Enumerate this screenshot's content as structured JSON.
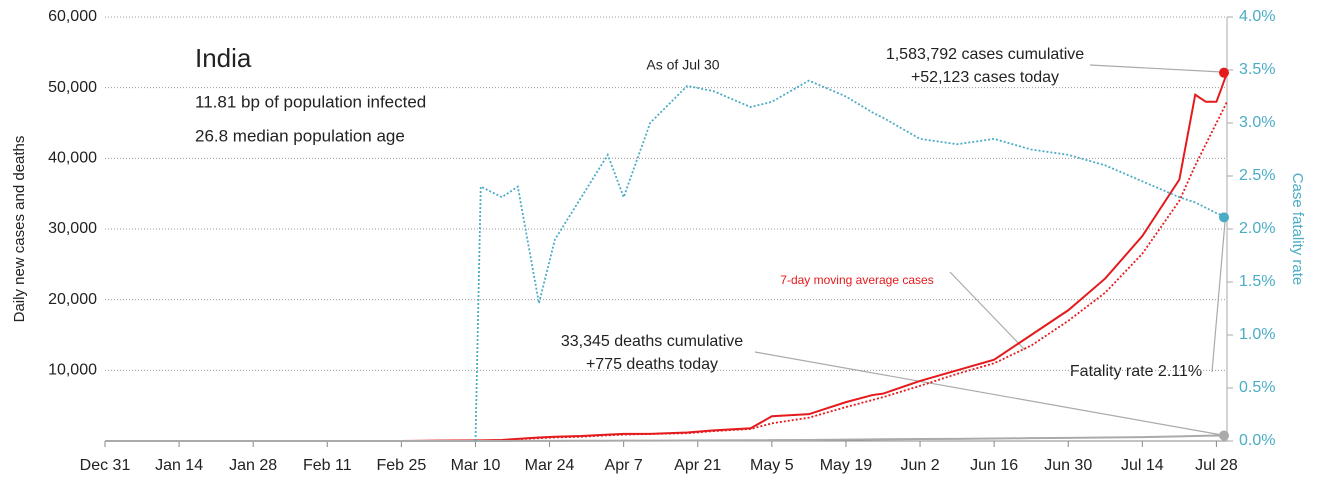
{
  "chart_data": {
    "type": "line",
    "title": "India",
    "subtitle": [
      "11.81 bp of population infected",
      "26.8 median population age"
    ],
    "annotations": {
      "as_of": "As of Jul 30",
      "cases_cum": "1,583,792 cases cumulative",
      "cases_today": "+52,123 cases today",
      "avg_label": "7-day moving average cases",
      "deaths_cum": "33,345 deaths cumulative",
      "deaths_today": "+775 deaths today",
      "fatality": "Fatality rate 2.11%"
    },
    "ylabel": "Daily new cases and deaths",
    "y2label": "Case fatality rate",
    "x": [
      0,
      14,
      28,
      42,
      56,
      63,
      70,
      71,
      75,
      78,
      82,
      85,
      90,
      95,
      98,
      103,
      110,
      115,
      122,
      126,
      133,
      140,
      145,
      147,
      154,
      161,
      168,
      175,
      182,
      189,
      196,
      203,
      206,
      208,
      210,
      211,
      212
    ],
    "xlim": [
      0,
      212
    ],
    "xticks": [
      {
        "value": 0,
        "label": "Dec 31"
      },
      {
        "value": 14,
        "label": "Jan 14"
      },
      {
        "value": 28,
        "label": "Jan 28"
      },
      {
        "value": 42,
        "label": "Feb 11"
      },
      {
        "value": 56,
        "label": "Feb 25"
      },
      {
        "value": 70,
        "label": "Mar 10"
      },
      {
        "value": 84,
        "label": "Mar 24"
      },
      {
        "value": 98,
        "label": "Apr 7"
      },
      {
        "value": 112,
        "label": "Apr 21"
      },
      {
        "value": 126,
        "label": "May 5"
      },
      {
        "value": 140,
        "label": "May 19"
      },
      {
        "value": 154,
        "label": "Jun 2"
      },
      {
        "value": 168,
        "label": "Jun 16"
      },
      {
        "value": 182,
        "label": "Jun 30"
      },
      {
        "value": 196,
        "label": "Jul 14"
      },
      {
        "value": 210,
        "label": "Jul 28"
      }
    ],
    "ylim": [
      0,
      60000
    ],
    "yticks": [
      {
        "value": 10000,
        "label": "10,000"
      },
      {
        "value": 20000,
        "label": "20,000"
      },
      {
        "value": 30000,
        "label": "30,000"
      },
      {
        "value": 40000,
        "label": "40,000"
      },
      {
        "value": 50000,
        "label": "50,000"
      },
      {
        "value": 60000,
        "label": "60,000"
      }
    ],
    "y2lim": [
      0,
      4
    ],
    "y2ticks": [
      {
        "value": 0,
        "label": "0.0%"
      },
      {
        "value": 0.5,
        "label": "0.5%"
      },
      {
        "value": 1,
        "label": "1.0%"
      },
      {
        "value": 1.5,
        "label": "1.5%"
      },
      {
        "value": 2,
        "label": "2.0%"
      },
      {
        "value": 2.5,
        "label": "2.5%"
      },
      {
        "value": 3,
        "label": "3.0%"
      },
      {
        "value": 3.5,
        "label": "3.5%"
      },
      {
        "value": 4,
        "label": "4.0%"
      }
    ],
    "grid": true,
    "series": [
      {
        "color": "#e41a1c",
        "style": "solid",
        "values": [
          0,
          0,
          0,
          0,
          0,
          50,
          80,
          90,
          150,
          300,
          500,
          600,
          700,
          900,
          1000,
          1000,
          1200,
          1500,
          1800,
          3500,
          3800,
          5500,
          6500,
          6700,
          8500,
          10000,
          11500,
          15000,
          18500,
          23000,
          29000,
          37000,
          49000,
          48000,
          48000,
          50000,
          52123
        ]
      },
      {
        "color": "#e41a1c",
        "style": "dotted",
        "values": [
          0,
          0,
          0,
          0,
          0,
          30,
          60,
          70,
          120,
          250,
          400,
          500,
          600,
          800,
          900,
          1000,
          1100,
          1400,
          1700,
          2500,
          3300,
          4800,
          5800,
          6200,
          7800,
          9500,
          11000,
          13500,
          17000,
          21000,
          26500,
          34000,
          39000,
          42000,
          45000,
          46500,
          48000
        ]
      },
      {
        "color": "#aaaaaa",
        "style": "solid",
        "values": [
          0,
          0,
          0,
          0,
          0,
          0,
          0,
          2,
          5,
          10,
          15,
          20,
          30,
          40,
          50,
          60,
          70,
          80,
          100,
          120,
          150,
          200,
          230,
          250,
          280,
          300,
          350,
          400,
          450,
          500,
          550,
          650,
          700,
          750,
          780,
          760,
          775
        ]
      },
      {
        "color": "#4bacc6",
        "style": "dotted",
        "axis": "y2",
        "values": [
          null,
          null,
          null,
          null,
          null,
          null,
          0,
          2.4,
          2.3,
          2.4,
          1.3,
          1.9,
          2.3,
          2.7,
          2.3,
          3.0,
          3.35,
          3.3,
          3.15,
          3.2,
          3.4,
          3.25,
          3.1,
          3.05,
          2.85,
          2.8,
          2.85,
          2.75,
          2.7,
          2.6,
          2.45,
          2.3,
          2.25,
          2.2,
          2.15,
          2.13,
          2.11
        ]
      }
    ]
  }
}
